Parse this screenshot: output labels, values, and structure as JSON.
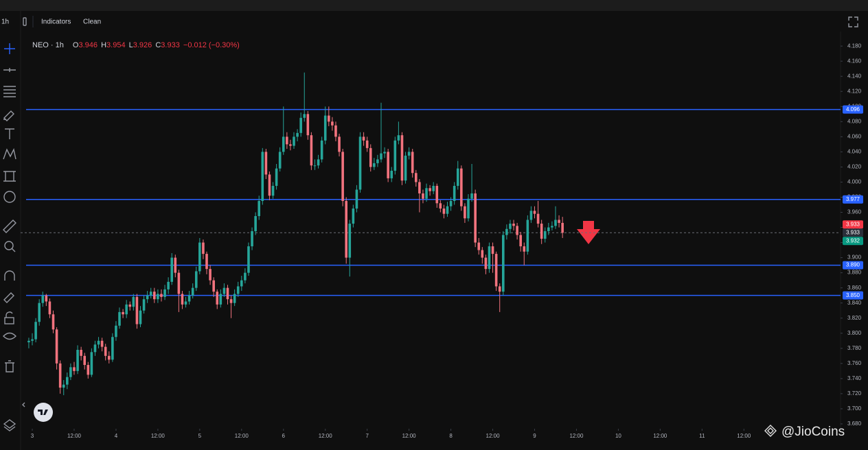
{
  "toolbar": {
    "interval": "1h",
    "indicators": "Indicators",
    "clean": "Clean"
  },
  "chart_data": {
    "type": "candlestick",
    "symbol": "NEO · 1h",
    "legend": {
      "o": "O",
      "open": 3.946,
      "h": "H",
      "high": 3.954,
      "l": "L",
      "low": 3.926,
      "c": "C",
      "close": 3.933,
      "change": "−0.012 (−0.30%)"
    },
    "up_color": "#26a69a",
    "down_color": "#f2737e",
    "x": [
      -1,
      0,
      1,
      2,
      3,
      4,
      5,
      6,
      7,
      8,
      9,
      10,
      11,
      12,
      13,
      14,
      15,
      16,
      17,
      18,
      19,
      20,
      21,
      22,
      23,
      24,
      25,
      26,
      27,
      28,
      29,
      30,
      31,
      32,
      33,
      34,
      35,
      36,
      37,
      38,
      39,
      40,
      41,
      42,
      43,
      44,
      45,
      46,
      47,
      48,
      49,
      50,
      51,
      52,
      53,
      54,
      55,
      56,
      57,
      58,
      59,
      60,
      61,
      62,
      63,
      64,
      65,
      66,
      67,
      68,
      69,
      70,
      71,
      72,
      73,
      74,
      75,
      76,
      77,
      78,
      79,
      80,
      81,
      82,
      83,
      84,
      85,
      86,
      87,
      88,
      89,
      90,
      91,
      92,
      93,
      94,
      95,
      96,
      97,
      98,
      99,
      100,
      101,
      102,
      103,
      104,
      105,
      106,
      107,
      108,
      109,
      110,
      111,
      112,
      113,
      114,
      115,
      116,
      117,
      118,
      119,
      120,
      121,
      122,
      123,
      124,
      125,
      126,
      127,
      128,
      129,
      130,
      131,
      132,
      133,
      134,
      135,
      136,
      137,
      138,
      139,
      140,
      141,
      142,
      143,
      144,
      145,
      146,
      147,
      148,
      149,
      150,
      151,
      152
    ],
    "open": [
      3.788,
      3.79,
      3.792,
      3.815,
      3.84,
      3.85,
      3.842,
      3.825,
      3.805,
      3.76,
      3.728,
      3.732,
      3.742,
      3.755,
      3.75,
      3.778,
      3.77,
      3.758,
      3.745,
      3.775,
      3.785,
      3.79,
      3.782,
      3.77,
      3.765,
      3.795,
      3.81,
      3.828,
      3.825,
      3.838,
      3.835,
      3.848,
      3.812,
      3.83,
      3.845,
      3.85,
      3.855,
      3.845,
      3.852,
      3.848,
      3.858,
      3.868,
      3.9,
      3.88,
      3.852,
      3.838,
      3.842,
      3.85,
      3.86,
      3.882,
      3.92,
      3.905,
      3.885,
      3.87,
      3.855,
      3.838,
      3.852,
      3.86,
      3.845,
      3.84,
      3.852,
      3.862,
      3.87,
      3.88,
      3.915,
      3.935,
      3.955,
      3.975,
      4.04,
      4.01,
      3.982,
      3.995,
      4.018,
      4.04,
      4.06,
      4.05,
      4.048,
      4.06,
      4.065,
      4.085,
      4.09,
      4.062,
      4.022,
      4.022,
      4.03,
      4.055,
      4.088,
      4.08,
      4.075,
      4.06,
      4.04,
      3.975,
      3.9,
      3.945,
      3.965,
      3.99,
      4.06,
      4.055,
      4.045,
      4.02,
      4.025,
      4.03,
      4.038,
      4.04,
      4.005,
      4.015,
      4.055,
      4.062,
      4.002,
      4.035,
      4.04,
      4.012,
      4.0,
      3.985,
      3.978,
      3.992,
      3.988,
      3.995,
      3.972,
      3.965,
      3.958,
      3.968,
      3.975,
      3.995,
      4.018,
      3.968,
      3.952,
      3.978,
      3.985,
      3.92,
      3.91,
      3.9,
      3.885,
      3.915,
      3.905,
      3.862,
      3.855,
      3.93,
      3.938,
      3.945,
      3.942,
      3.93,
      3.915,
      3.908,
      3.95,
      3.962,
      3.958,
      3.945,
      3.925,
      3.935,
      3.94,
      3.942,
      3.95,
      3.946
    ],
    "high": [
      3.794,
      3.8,
      3.82,
      3.845,
      3.855,
      3.852,
      3.846,
      3.83,
      3.808,
      3.764,
      3.738,
      3.748,
      3.76,
      3.762,
      3.784,
      3.782,
      3.774,
      3.762,
      3.78,
      3.79,
      3.795,
      3.794,
      3.786,
      3.776,
      3.8,
      3.816,
      3.834,
      3.832,
      3.844,
      3.842,
      3.852,
      3.852,
      3.836,
      3.85,
      3.856,
      3.86,
      3.86,
      3.858,
      3.858,
      3.864,
      3.874,
      3.906,
      3.904,
      3.884,
      3.856,
      3.848,
      3.856,
      3.866,
      3.888,
      3.926,
      3.924,
      3.908,
      3.89,
      3.874,
      3.858,
      3.858,
      3.866,
      3.864,
      3.85,
      3.858,
      3.868,
      3.876,
      3.886,
      3.92,
      3.94,
      3.96,
      3.982,
      4.045,
      4.044,
      4.014,
      4.0,
      4.024,
      4.046,
      4.1,
      4.066,
      4.056,
      4.066,
      4.07,
      4.092,
      4.145,
      4.094,
      4.066,
      4.03,
      4.036,
      4.06,
      4.1,
      4.1,
      4.086,
      4.08,
      4.064,
      4.044,
      3.98,
      3.95,
      3.97,
      3.996,
      4.066,
      4.066,
      4.06,
      4.05,
      4.032,
      4.036,
      4.105,
      4.046,
      4.044,
      4.02,
      4.06,
      4.08,
      4.066,
      4.04,
      4.046,
      4.044,
      4.016,
      4.004,
      3.99,
      3.998,
      3.996,
      4.0,
      3.998,
      3.976,
      3.97,
      3.974,
      3.98,
      4.0,
      4.028,
      4.022,
      3.972,
      3.984,
      4.024,
      3.99,
      3.926,
      3.914,
      3.904,
      3.92,
      3.92,
      3.908,
      3.866,
      3.935,
      3.944,
      3.95,
      3.95,
      3.946,
      3.934,
      3.92,
      3.956,
      3.968,
      3.968,
      3.975,
      3.95,
      3.94,
      3.946,
      3.948,
      3.968,
      3.956,
      3.954
    ],
    "low": [
      3.78,
      3.784,
      3.788,
      3.81,
      3.835,
      3.836,
      3.82,
      3.8,
      3.752,
      3.72,
      3.718,
      3.726,
      3.738,
      3.745,
      3.746,
      3.764,
      3.752,
      3.74,
      3.742,
      3.77,
      3.78,
      3.776,
      3.764,
      3.76,
      3.762,
      3.79,
      3.806,
      3.82,
      3.82,
      3.83,
      3.83,
      3.806,
      3.808,
      3.826,
      3.84,
      3.846,
      3.84,
      3.84,
      3.842,
      3.844,
      3.852,
      3.864,
      3.874,
      3.828,
      3.832,
      3.834,
      3.838,
      3.846,
      3.856,
      3.878,
      3.898,
      3.878,
      3.864,
      3.848,
      3.832,
      3.834,
      3.848,
      3.838,
      3.82,
      3.836,
      3.848,
      3.856,
      3.866,
      3.876,
      3.91,
      3.93,
      3.95,
      3.97,
      4.004,
      3.976,
      3.978,
      3.99,
      4.014,
      4.036,
      4.044,
      4.042,
      4.044,
      4.054,
      4.06,
      4.08,
      4.056,
      4.016,
      4.016,
      4.018,
      4.026,
      4.05,
      4.074,
      4.068,
      4.054,
      4.034,
      3.968,
      3.892,
      3.875,
      3.94,
      3.96,
      3.986,
      4.048,
      4.04,
      4.014,
      4.016,
      4.02,
      4.026,
      4.032,
      4.0,
      4.0,
      4.01,
      4.05,
      3.996,
      3.998,
      4.03,
      4.006,
      3.994,
      3.96,
      3.972,
      3.974,
      3.982,
      3.984,
      3.966,
      3.96,
      3.952,
      3.954,
      3.962,
      3.97,
      3.99,
      3.962,
      3.946,
      3.948,
      3.974,
      3.914,
      3.904,
      3.892,
      3.878,
      3.88,
      3.88,
      3.856,
      3.828,
      3.85,
      3.924,
      3.932,
      3.936,
      3.924,
      3.908,
      3.89,
      3.904,
      3.946,
      3.952,
      3.94,
      3.918,
      3.92,
      3.93,
      3.936,
      3.938,
      3.94,
      3.926
    ],
    "close": [
      3.79,
      3.792,
      3.815,
      3.84,
      3.85,
      3.842,
      3.825,
      3.805,
      3.76,
      3.728,
      3.732,
      3.742,
      3.755,
      3.75,
      3.778,
      3.77,
      3.758,
      3.745,
      3.775,
      3.785,
      3.79,
      3.782,
      3.77,
      3.765,
      3.795,
      3.81,
      3.828,
      3.825,
      3.838,
      3.835,
      3.848,
      3.812,
      3.83,
      3.845,
      3.85,
      3.855,
      3.845,
      3.852,
      3.848,
      3.858,
      3.868,
      3.9,
      3.88,
      3.852,
      3.838,
      3.842,
      3.85,
      3.86,
      3.882,
      3.92,
      3.905,
      3.885,
      3.87,
      3.855,
      3.838,
      3.852,
      3.86,
      3.845,
      3.84,
      3.852,
      3.862,
      3.87,
      3.88,
      3.915,
      3.935,
      3.955,
      3.975,
      4.04,
      4.01,
      3.982,
      3.995,
      4.018,
      4.04,
      4.06,
      4.05,
      4.048,
      4.06,
      4.065,
      4.085,
      4.09,
      4.062,
      4.022,
      4.022,
      4.03,
      4.055,
      4.088,
      4.08,
      4.075,
      4.06,
      4.04,
      3.975,
      3.9,
      3.945,
      3.965,
      3.99,
      4.06,
      4.055,
      4.045,
      4.02,
      4.025,
      4.03,
      4.038,
      4.04,
      4.005,
      4.015,
      4.055,
      4.062,
      4.002,
      4.035,
      4.04,
      4.012,
      4.0,
      3.985,
      3.978,
      3.992,
      3.988,
      3.995,
      3.972,
      3.965,
      3.958,
      3.968,
      3.975,
      3.995,
      4.018,
      3.968,
      3.952,
      3.978,
      3.985,
      3.92,
      3.91,
      3.9,
      3.885,
      3.915,
      3.905,
      3.862,
      3.855,
      3.93,
      3.938,
      3.945,
      3.942,
      3.93,
      3.915,
      3.908,
      3.95,
      3.962,
      3.958,
      3.945,
      3.925,
      3.935,
      3.94,
      3.942,
      3.95,
      3.946,
      3.933
    ],
    "xlim": [
      -3.35,
      231.7
    ],
    "xticks": [
      {
        "value": 0,
        "label": "3"
      },
      {
        "value": 12,
        "label": "12:00"
      },
      {
        "value": 24,
        "label": "4"
      },
      {
        "value": 36,
        "label": "12:00"
      },
      {
        "value": 48,
        "label": "5"
      },
      {
        "value": 60,
        "label": "12:00"
      },
      {
        "value": 72,
        "label": "6"
      },
      {
        "value": 84,
        "label": "12:00"
      },
      {
        "value": 96,
        "label": "7"
      },
      {
        "value": 108,
        "label": "12:00"
      },
      {
        "value": 120,
        "label": "8"
      },
      {
        "value": 132,
        "label": "12:00"
      },
      {
        "value": 144,
        "label": "9"
      },
      {
        "value": 156,
        "label": "12:00"
      },
      {
        "value": 168,
        "label": "10"
      },
      {
        "value": 180,
        "label": "12:00"
      },
      {
        "value": 192,
        "label": "11"
      },
      {
        "value": 204,
        "label": "12:00"
      }
    ],
    "ylim": [
      3.6736,
      4.1992
    ],
    "yticks": [
      {
        "value": 3.68,
        "label": "3.680"
      },
      {
        "value": 3.7,
        "label": "3.700"
      },
      {
        "value": 3.72,
        "label": "3.720"
      },
      {
        "value": 3.74,
        "label": "3.740"
      },
      {
        "value": 3.76,
        "label": "3.760"
      },
      {
        "value": 3.78,
        "label": "3.780"
      },
      {
        "value": 3.8,
        "label": "3.800"
      },
      {
        "value": 3.82,
        "label": "3.820"
      },
      {
        "value": 3.84,
        "label": "3.840"
      },
      {
        "value": 3.86,
        "label": "3.860"
      },
      {
        "value": 3.88,
        "label": "3.880"
      },
      {
        "value": 3.9,
        "label": "3.900"
      },
      {
        "value": 3.92,
        "label": "3.920"
      },
      {
        "value": 3.94,
        "label": "3.940"
      },
      {
        "value": 3.96,
        "label": "3.960"
      },
      {
        "value": 3.98,
        "label": "3.980"
      },
      {
        "value": 4.0,
        "label": "4.000"
      },
      {
        "value": 4.02,
        "label": "4.020"
      },
      {
        "value": 4.04,
        "label": "4.040"
      },
      {
        "value": 4.06,
        "label": "4.060"
      },
      {
        "value": 4.08,
        "label": "4.080"
      },
      {
        "value": 4.1,
        "label": "4.100"
      },
      {
        "value": 4.12,
        "label": "4.120"
      },
      {
        "value": 4.14,
        "label": "4.140"
      },
      {
        "value": 4.16,
        "label": "4.160"
      },
      {
        "value": 4.18,
        "label": "4.180"
      }
    ],
    "hlines": [
      {
        "value": 4.096,
        "label": "4.096"
      },
      {
        "value": 3.977,
        "label": "3.977"
      },
      {
        "value": 3.89,
        "label": "3.890"
      },
      {
        "value": 3.85,
        "label": "3.850"
      }
    ],
    "hline_color": "#2962ff",
    "last_price": 3.933,
    "price_tags": [
      {
        "value": 3.933,
        "label": "3.933",
        "color": "#f23645"
      },
      {
        "value": 3.933,
        "label": "3.933",
        "color": "#2a2e39"
      },
      {
        "value": 3.932,
        "label": "3.932",
        "color": "#089981"
      }
    ]
  },
  "watermark": "@JioCoins"
}
